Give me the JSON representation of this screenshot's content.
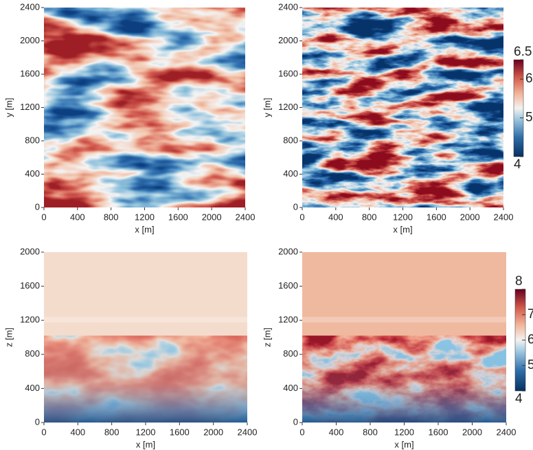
{
  "chart_data": [
    {
      "type": "heatmap",
      "xlabel": "x [m]",
      "ylabel": "y [m]",
      "xlim": [
        0,
        2400
      ],
      "ylim": [
        0,
        2400
      ],
      "xticks": [
        0,
        400,
        800,
        1200,
        1600,
        2000,
        2400
      ],
      "yticks": [
        0,
        400,
        800,
        1200,
        1600,
        2000,
        2400
      ]
    },
    {
      "type": "heatmap",
      "xlabel": "x [m]",
      "ylabel": "y [m]",
      "xlim": [
        0,
        2400
      ],
      "ylim": [
        0,
        2400
      ],
      "xticks": [
        0,
        400,
        800,
        1200,
        1600,
        2000,
        2400
      ],
      "yticks": [
        0,
        400,
        800,
        1200,
        1600,
        2000,
        2400
      ],
      "colorbar": {
        "lim": [
          4,
          6.5
        ],
        "ticks": [
          4,
          5,
          6,
          6.5
        ]
      }
    },
    {
      "type": "heatmap",
      "xlabel": "x [m]",
      "ylabel": "z [m]",
      "xlim": [
        0,
        2400
      ],
      "ylim": [
        0,
        2000
      ],
      "xticks": [
        0,
        400,
        800,
        1200,
        1600,
        2000,
        2400
      ],
      "yticks": [
        0,
        400,
        800,
        1200,
        1600,
        2000
      ]
    },
    {
      "type": "heatmap",
      "xlabel": "x [m]",
      "ylabel": "z [m]",
      "xlim": [
        0,
        2400
      ],
      "ylim": [
        0,
        2000
      ],
      "xticks": [
        0,
        400,
        800,
        1200,
        1600,
        2000,
        2400
      ],
      "yticks": [
        0,
        400,
        800,
        1200,
        1600,
        2000
      ],
      "colorbar": {
        "lim": [
          4,
          8
        ],
        "ticks": [
          4,
          5,
          6,
          7,
          8
        ]
      }
    }
  ]
}
